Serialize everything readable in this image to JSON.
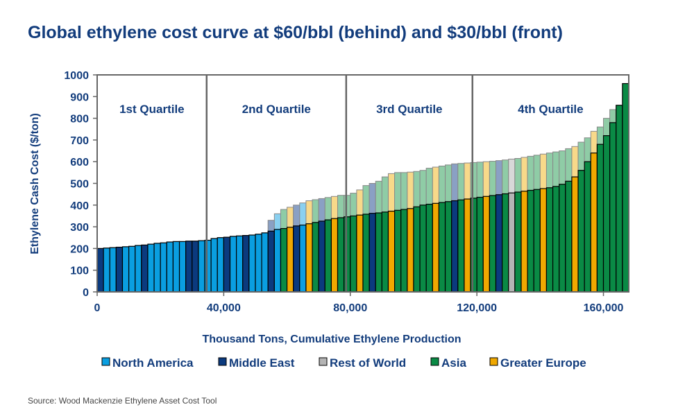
{
  "chart_data": {
    "type": "bar",
    "title": "Global ethylene cost curve at $60/bbl (behind) and $30/bbl (front)",
    "xlabel": "Thousand Tons, Cumulative Ethylene Production",
    "ylabel": "Ethylene Cash Cost ($/ton)",
    "xlim": [
      0,
      168000
    ],
    "ylim": [
      0,
      1000
    ],
    "yticks": [
      0,
      100,
      200,
      300,
      400,
      500,
      600,
      700,
      800,
      900,
      1000
    ],
    "xticks": [
      0,
      40000,
      80000,
      120000,
      160000
    ],
    "xtick_labels": [
      "0",
      "40,000",
      "80,000",
      "120,000",
      "160,000"
    ],
    "quartile_boundaries": [
      34600,
      78700,
      118600
    ],
    "quartile_labels": [
      "1st Quartile",
      "2nd Quartile",
      "3rd Quartile",
      "4th Quartile"
    ],
    "legend_position": "bottom",
    "legend": [
      {
        "code": "NA",
        "label": "North America",
        "color": "#0a9ee0",
        "behind_color": "#8ad0f0"
      },
      {
        "code": "ME",
        "label": "Middle East",
        "color": "#0b3a7e",
        "behind_color": "#8aa0c4"
      },
      {
        "code": "RW",
        "label": "Rest of World",
        "color": "#b4b4b4",
        "behind_color": "#d8d8d8"
      },
      {
        "code": "AS",
        "label": "Asia",
        "color": "#0a8a45",
        "behind_color": "#8fcca6"
      },
      {
        "code": "GE",
        "label": "Greater Europe",
        "color": "#f0a800",
        "behind_color": "#f8d98a"
      }
    ],
    "bar_capacity_kt": 2000,
    "front_cost": [
      200,
      202,
      204,
      206,
      208,
      210,
      214,
      216,
      220,
      224,
      226,
      230,
      232,
      232,
      234,
      234,
      236,
      238,
      246,
      250,
      252,
      256,
      258,
      260,
      262,
      266,
      272,
      280,
      288,
      292,
      298,
      304,
      308,
      314,
      320,
      326,
      332,
      338,
      342,
      346,
      350,
      354,
      358,
      362,
      364,
      368,
      372,
      376,
      380,
      384,
      392,
      400,
      404,
      408,
      412,
      416,
      420,
      424,
      428,
      432,
      436,
      440,
      444,
      448,
      452,
      456,
      460,
      464,
      468,
      472,
      476,
      480,
      486,
      496,
      510,
      530,
      560,
      600,
      640,
      680,
      720,
      780,
      860,
      960
    ],
    "behind_cost": [
      200,
      202,
      204,
      206,
      208,
      210,
      214,
      216,
      220,
      224,
      226,
      230,
      232,
      232,
      234,
      234,
      236,
      238,
      246,
      250,
      252,
      256,
      258,
      260,
      262,
      266,
      272,
      330,
      360,
      380,
      390,
      400,
      410,
      420,
      425,
      430,
      435,
      440,
      445,
      445,
      455,
      470,
      490,
      500,
      510,
      530,
      545,
      550,
      550,
      552,
      555,
      560,
      570,
      575,
      580,
      585,
      590,
      592,
      594,
      596,
      598,
      600,
      602,
      605,
      608,
      612,
      615,
      620,
      625,
      630,
      635,
      640,
      645,
      650,
      660,
      670,
      690,
      710,
      740,
      760,
      800,
      840,
      860,
      960
    ],
    "region": [
      "ME",
      "NA",
      "NA",
      "ME",
      "NA",
      "NA",
      "NA",
      "ME",
      "NA",
      "NA",
      "NA",
      "NA",
      "NA",
      "NA",
      "ME",
      "ME",
      "NA",
      "NA",
      "NA",
      "NA",
      "ME",
      "NA",
      "NA",
      "ME",
      "NA",
      "NA",
      "NA",
      "ME",
      "NA",
      "AS",
      "GE",
      "ME",
      "NA",
      "GE",
      "AS",
      "ME",
      "AS",
      "GE",
      "AS",
      "AS",
      "AS",
      "GE",
      "AS",
      "ME",
      "AS",
      "AS",
      "GE",
      "AS",
      "AS",
      "GE",
      "AS",
      "AS",
      "AS",
      "GE",
      "AS",
      "AS",
      "ME",
      "AS",
      "GE",
      "AS",
      "AS",
      "GE",
      "AS",
      "ME",
      "AS",
      "RW",
      "AS",
      "GE",
      "AS",
      "AS",
      "GE",
      "AS",
      "AS",
      "AS",
      "AS",
      "GE",
      "AS",
      "AS",
      "GE",
      "AS",
      "AS",
      "AS",
      "AS",
      "AS"
    ]
  },
  "source": "Source: Wood Mackenzie Ethylene Asset Cost Tool"
}
